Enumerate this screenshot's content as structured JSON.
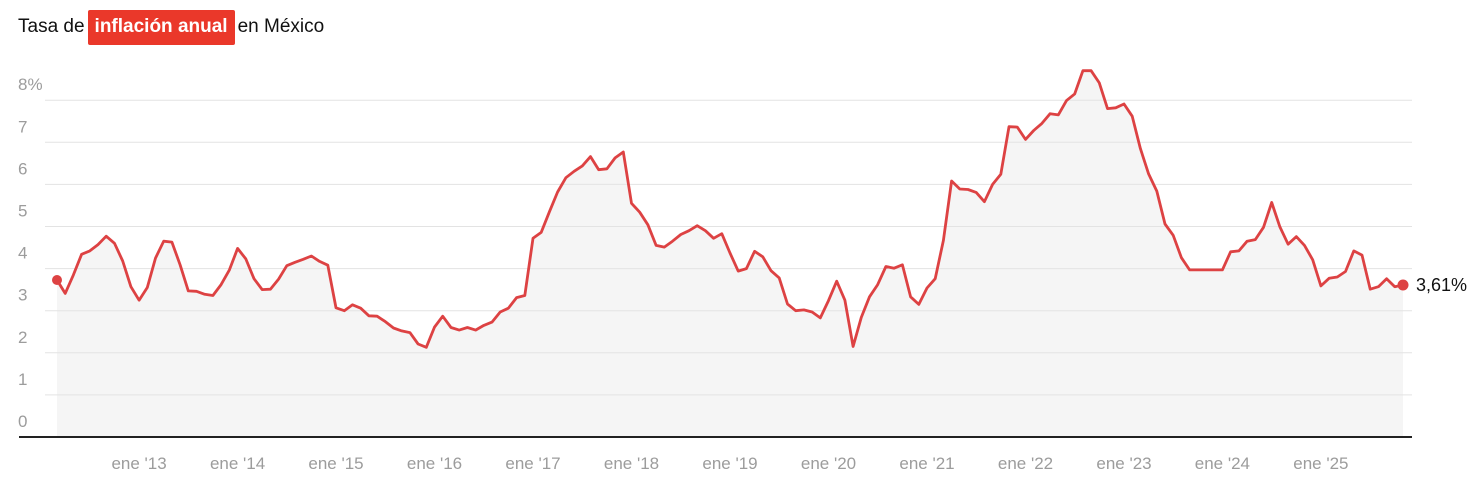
{
  "title": {
    "prefix": "Tasa de",
    "highlight": "inflación anual",
    "suffix": "en México"
  },
  "chart_data": {
    "type": "line",
    "title": "Tasa de inflación anual en México",
    "unit": "%",
    "decimal_style": "comma",
    "frequency": "monthly",
    "start_month": "2012-03",
    "end_month": "2025-11",
    "series_name": "Tasa de inflación anual",
    "values": [
      3.73,
      3.41,
      3.85,
      4.34,
      4.42,
      4.57,
      4.77,
      4.6,
      4.18,
      3.57,
      3.25,
      3.55,
      4.25,
      4.65,
      4.63,
      4.09,
      3.47,
      3.46,
      3.39,
      3.36,
      3.62,
      3.97,
      4.48,
      4.23,
      3.76,
      3.5,
      3.51,
      3.75,
      4.07,
      4.15,
      4.22,
      4.3,
      4.17,
      4.08,
      3.07,
      3.0,
      3.14,
      3.06,
      2.88,
      2.87,
      2.74,
      2.59,
      2.52,
      2.48,
      2.21,
      2.13,
      2.61,
      2.87,
      2.6,
      2.54,
      2.6,
      2.54,
      2.65,
      2.73,
      2.97,
      3.06,
      3.31,
      3.36,
      4.72,
      4.86,
      5.35,
      5.82,
      6.16,
      6.31,
      6.44,
      6.66,
      6.35,
      6.37,
      6.63,
      6.77,
      5.55,
      5.34,
      5.04,
      4.55,
      4.51,
      4.65,
      4.81,
      4.9,
      5.02,
      4.9,
      4.72,
      4.83,
      4.37,
      3.94,
      4.0,
      4.41,
      4.28,
      3.95,
      3.78,
      3.16,
      3.0,
      3.02,
      2.97,
      2.83,
      3.24,
      3.7,
      3.25,
      2.15,
      2.84,
      3.33,
      3.62,
      4.05,
      4.01,
      4.09,
      3.33,
      3.15,
      3.54,
      3.76,
      4.67,
      6.08,
      5.89,
      5.88,
      5.81,
      5.59,
      6.0,
      6.24,
      7.37,
      7.36,
      7.07,
      7.28,
      7.45,
      7.68,
      7.65,
      7.99,
      8.15,
      8.7,
      8.7,
      8.41,
      7.8,
      7.82,
      7.91,
      7.62,
      6.85,
      6.25,
      5.84,
      5.06,
      4.79,
      4.26,
      3.97,
      3.97,
      3.97,
      3.97,
      3.97,
      4.4,
      4.42,
      4.65,
      4.69,
      4.98,
      5.57,
      4.99,
      4.58,
      4.76,
      4.55,
      4.21,
      3.59,
      3.77,
      3.8,
      3.93,
      4.42,
      4.32,
      3.51,
      3.57,
      3.76,
      3.57,
      3.61
    ],
    "last_value": 3.61,
    "end_label": "3,61%",
    "y_ticks": [
      {
        "label": "8%",
        "value": 8
      },
      {
        "label": "7",
        "value": 7
      },
      {
        "label": "6",
        "value": 6
      },
      {
        "label": "5",
        "value": 5
      },
      {
        "label": "4",
        "value": 4
      },
      {
        "label": "3",
        "value": 3
      },
      {
        "label": "2",
        "value": 2
      },
      {
        "label": "1",
        "value": 1
      },
      {
        "label": "0",
        "value": 0
      }
    ],
    "x_ticks": [
      {
        "label": "ene '13",
        "month_index": 10
      },
      {
        "label": "ene '14",
        "month_index": 22
      },
      {
        "label": "ene '15",
        "month_index": 34
      },
      {
        "label": "ene '16",
        "month_index": 46
      },
      {
        "label": "ene '17",
        "month_index": 58
      },
      {
        "label": "ene '18",
        "month_index": 70
      },
      {
        "label": "ene '19",
        "month_index": 82
      },
      {
        "label": "ene '20",
        "month_index": 94
      },
      {
        "label": "ene '21",
        "month_index": 106
      },
      {
        "label": "ene '22",
        "month_index": 118
      },
      {
        "label": "ene '23",
        "month_index": 130
      },
      {
        "label": "ene '24",
        "month_index": 142
      },
      {
        "label": "ene '25",
        "month_index": 154
      }
    ],
    "ylim": [
      0,
      8.7
    ],
    "grid": true,
    "legend_position": "none",
    "colors": {
      "line": "#dd4243",
      "dot": "#dd4243",
      "area_fill": "#f5f5f5",
      "grid_line": "#e3e3e3",
      "axis_line": "#222222",
      "tick_text": "#9c9c9c",
      "title_text": "#111111",
      "end_label_text": "#111111",
      "highlight_bg": "#ea382a",
      "highlight_text": "#ffffff"
    }
  }
}
